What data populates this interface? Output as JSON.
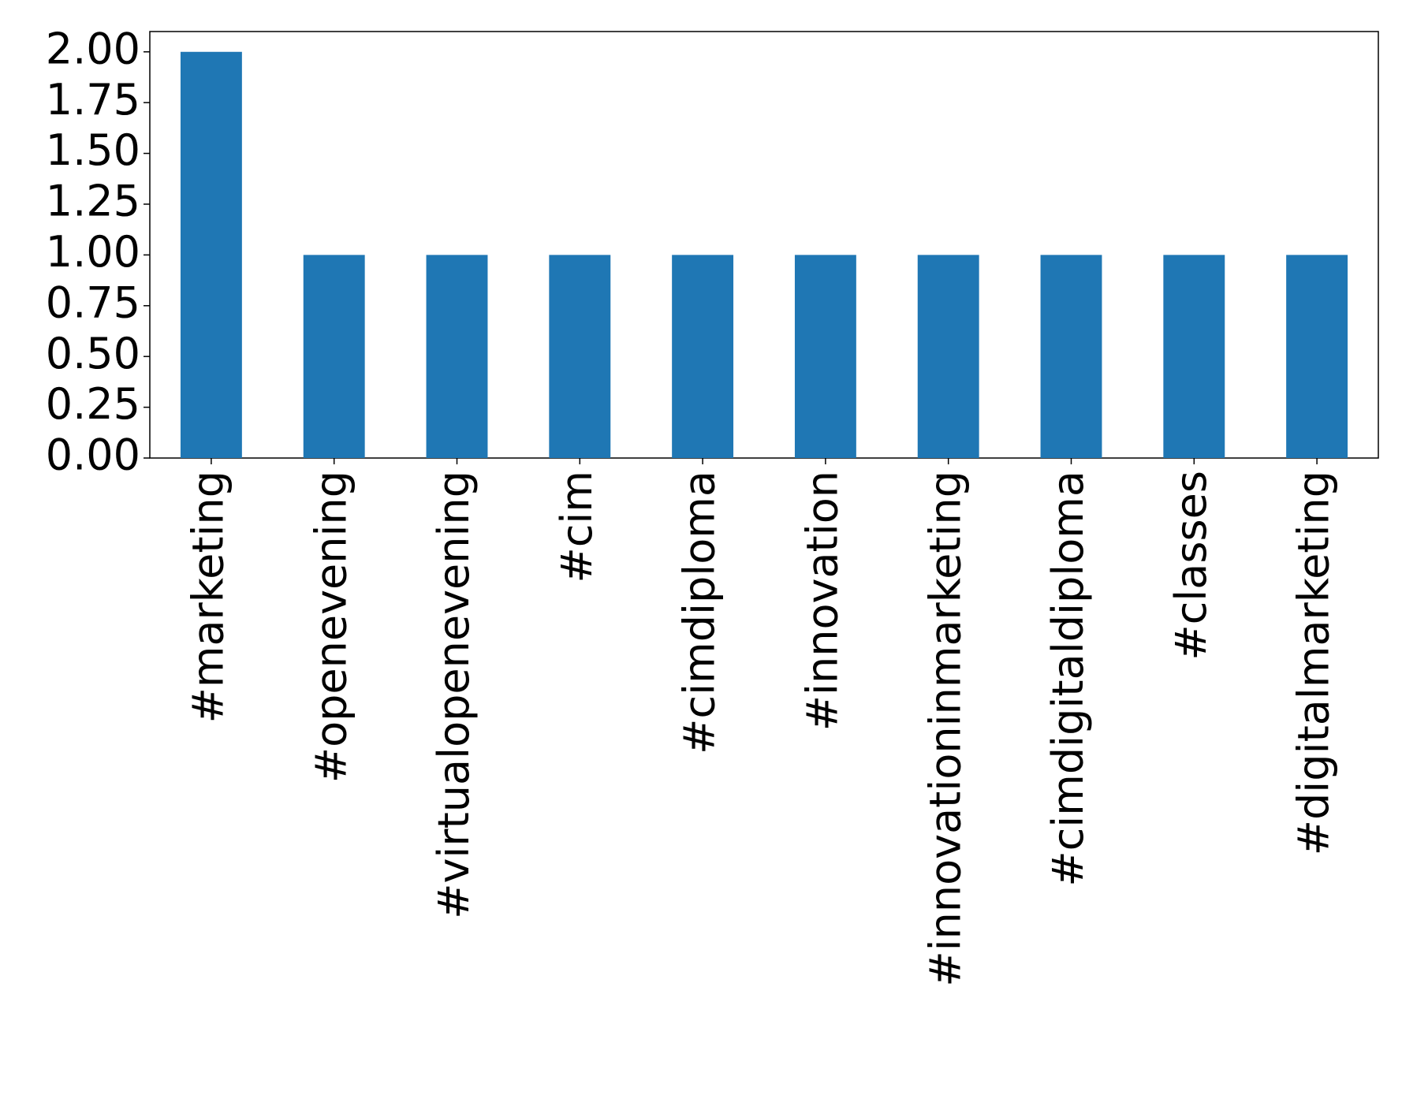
{
  "chart_data": {
    "type": "bar",
    "categories": [
      "#marketing",
      "#openevening",
      "#virtualopenevening",
      "#cim",
      "#cimdiploma",
      "#innovation",
      "#innovationinmarketing",
      "#cimdigitaldiploma",
      "#classes",
      "#digitalmarketing"
    ],
    "values": [
      2,
      1,
      1,
      1,
      1,
      1,
      1,
      1,
      1,
      1
    ],
    "color": "#1f77b4",
    "ylim": [
      0,
      2.1
    ],
    "yticks": [
      {
        "value": 0,
        "label": "0.00"
      },
      {
        "value": 0.25,
        "label": "0.25"
      },
      {
        "value": 0.5,
        "label": "0.50"
      },
      {
        "value": 0.75,
        "label": "0.75"
      },
      {
        "value": 1,
        "label": "1.00"
      },
      {
        "value": 1.25,
        "label": "1.25"
      },
      {
        "value": 1.5,
        "label": "1.50"
      },
      {
        "value": 1.75,
        "label": "1.75"
      },
      {
        "value": 2,
        "label": "2.00"
      }
    ],
    "grid": false
  }
}
